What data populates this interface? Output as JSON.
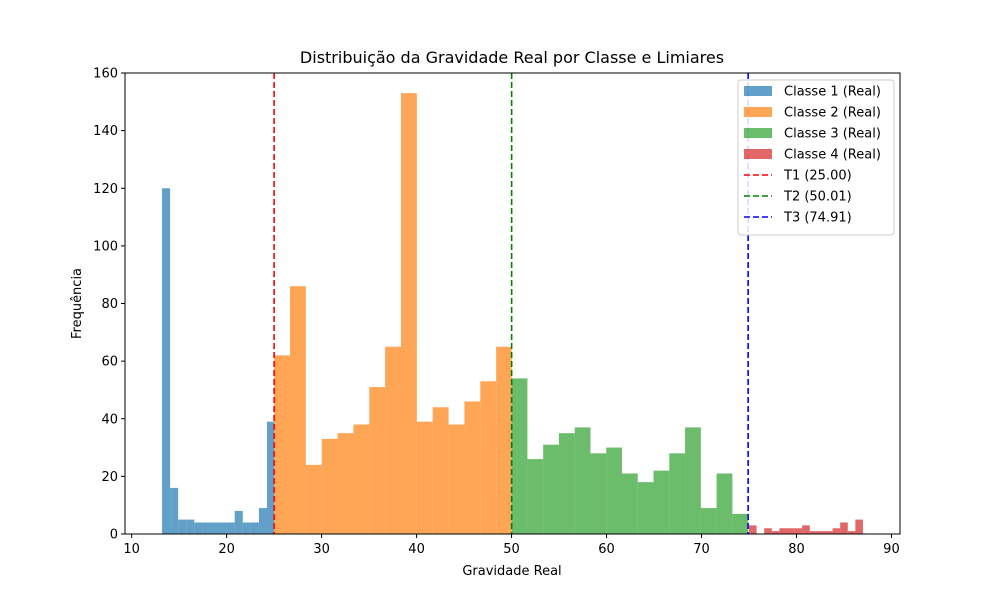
{
  "chart_data": {
    "type": "bar",
    "title": "Distribuição da Gravidade Real por Classe e Limiares",
    "xlabel": "Gravidade Real",
    "ylabel": "Frequência",
    "xlim": [
      9.3,
      90.9
    ],
    "ylim": [
      0,
      160
    ],
    "xticks": [
      10,
      20,
      30,
      40,
      50,
      60,
      70,
      80,
      90
    ],
    "yticks": [
      0,
      20,
      40,
      60,
      80,
      100,
      120,
      140,
      160
    ],
    "grid": false,
    "legend_position": "top-right",
    "series": [
      {
        "name": "Classe 1 (Real)",
        "color": "#1f77b4",
        "bins": [
          [
            13.2,
            14.05,
            120
          ],
          [
            14.05,
            14.9,
            16
          ],
          [
            14.9,
            15.75,
            5
          ],
          [
            15.75,
            16.6,
            5
          ],
          [
            16.6,
            17.45,
            4
          ],
          [
            17.45,
            18.3,
            4
          ],
          [
            18.3,
            19.15,
            4
          ],
          [
            19.15,
            20.0,
            4
          ],
          [
            20.0,
            20.85,
            4
          ],
          [
            20.85,
            21.7,
            8
          ],
          [
            21.7,
            22.55,
            4
          ],
          [
            22.55,
            23.4,
            4
          ],
          [
            23.4,
            24.25,
            9
          ],
          [
            24.25,
            25.0,
            39
          ]
        ]
      },
      {
        "name": "Classe 2 (Real)",
        "color": "#ff7f0e",
        "bins": [
          [
            25.0,
            26.67,
            62
          ],
          [
            26.67,
            28.34,
            86
          ],
          [
            28.34,
            30.01,
            24
          ],
          [
            30.01,
            31.68,
            33
          ],
          [
            31.68,
            33.35,
            35
          ],
          [
            33.35,
            35.02,
            38
          ],
          [
            35.02,
            36.69,
            51
          ],
          [
            36.69,
            38.36,
            65
          ],
          [
            38.36,
            40.03,
            153
          ],
          [
            40.03,
            41.7,
            39
          ],
          [
            41.7,
            43.37,
            44
          ],
          [
            43.37,
            45.04,
            38
          ],
          [
            45.04,
            46.71,
            46
          ],
          [
            46.71,
            48.38,
            53
          ],
          [
            48.38,
            50.01,
            65
          ]
        ]
      },
      {
        "name": "Classe 3 (Real)",
        "color": "#2ca02c",
        "bins": [
          [
            50.01,
            51.67,
            54
          ],
          [
            51.67,
            53.33,
            26
          ],
          [
            53.33,
            54.99,
            31
          ],
          [
            54.99,
            56.65,
            35
          ],
          [
            56.65,
            58.31,
            37
          ],
          [
            58.31,
            59.97,
            28
          ],
          [
            59.97,
            61.63,
            30
          ],
          [
            61.63,
            63.29,
            21
          ],
          [
            63.29,
            64.95,
            18
          ],
          [
            64.95,
            66.61,
            22
          ],
          [
            66.61,
            68.27,
            28
          ],
          [
            68.27,
            69.93,
            37
          ],
          [
            69.93,
            71.59,
            9
          ],
          [
            71.59,
            73.25,
            21
          ],
          [
            73.25,
            74.91,
            7
          ]
        ]
      },
      {
        "name": "Classe 4 (Real)",
        "color": "#d62728",
        "bins": [
          [
            75.0,
            75.8,
            3
          ],
          [
            75.8,
            76.6,
            0
          ],
          [
            76.6,
            77.4,
            2
          ],
          [
            77.4,
            78.2,
            1
          ],
          [
            78.2,
            79.0,
            2
          ],
          [
            79.0,
            79.8,
            2
          ],
          [
            79.8,
            80.6,
            2
          ],
          [
            80.6,
            81.4,
            3
          ],
          [
            81.4,
            82.2,
            1
          ],
          [
            82.2,
            83.0,
            1
          ],
          [
            83.0,
            83.8,
            1
          ],
          [
            83.8,
            84.6,
            2
          ],
          [
            84.6,
            85.4,
            4
          ],
          [
            85.4,
            86.2,
            1
          ],
          [
            86.2,
            87.0,
            5
          ]
        ]
      }
    ],
    "thresholds": [
      {
        "name": "T1 (25.00)",
        "value": 25.0,
        "color": "#ff0000"
      },
      {
        "name": "T2 (50.01)",
        "value": 50.01,
        "color": "#008000"
      },
      {
        "name": "T3 (74.91)",
        "value": 74.91,
        "color": "#0000ff"
      }
    ]
  }
}
